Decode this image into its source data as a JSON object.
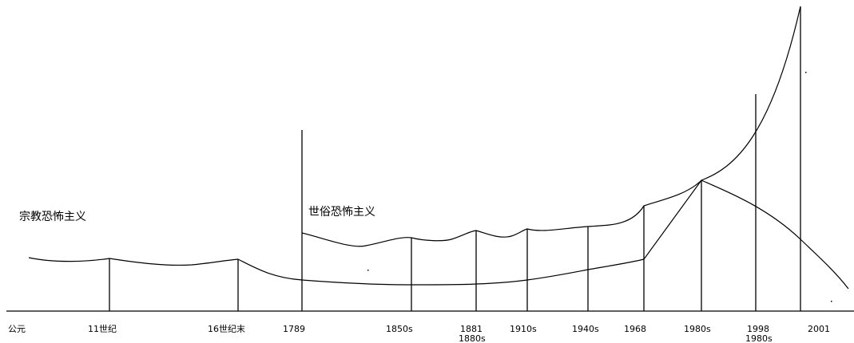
{
  "labels": {
    "religious": "宗教恐怖主义",
    "secular": "世俗恐怖主义"
  },
  "axis_ticks": [
    "公元",
    "11世纪",
    "16世纪末",
    "1789",
    "1850s",
    "1881",
    "1910s",
    "1940s",
    "1968",
    "1980s",
    "1998",
    "2001"
  ],
  "axis_subticks": [
    "1880s",
    "1980s"
  ],
  "colors": {
    "line": "#000000",
    "background": "#ffffff"
  }
}
